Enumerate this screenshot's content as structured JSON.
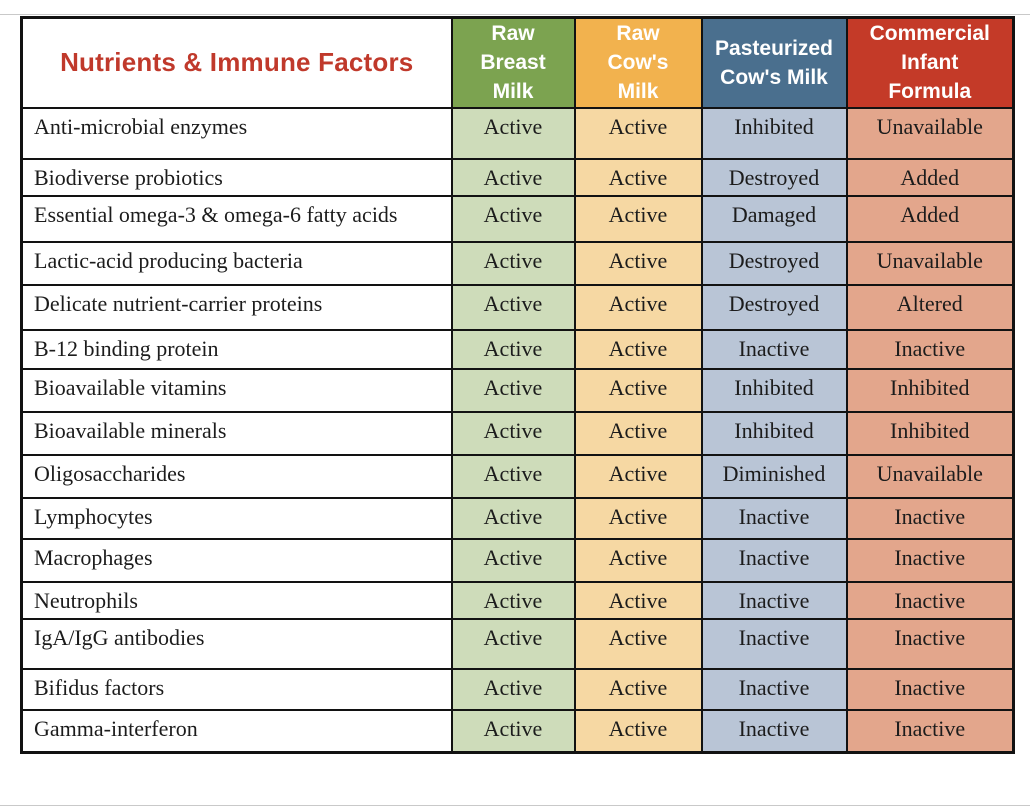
{
  "chart_data": {
    "type": "table",
    "title": "Nutrients & Immune Factors",
    "col_headers": [
      "Raw\nBreast\nMilk",
      "Raw\nCow's\nMilk",
      "Pasteurized\nCow's Milk",
      "Commercial\nInfant\nFormula"
    ],
    "rows": [
      {
        "label": "Anti-microbial enzymes",
        "values": [
          "Active",
          "Active",
          "Inhibited",
          "Unavailable"
        ]
      },
      {
        "label": "Biodiverse probiotics",
        "values": [
          "Active",
          "Active",
          "Destroyed",
          "Added"
        ]
      },
      {
        "label": "Essential omega-3 & omega-6 fatty acids",
        "values": [
          "Active",
          "Active",
          "Damaged",
          "Added"
        ]
      },
      {
        "label": "Lactic-acid producing bacteria",
        "values": [
          "Active",
          "Active",
          "Destroyed",
          "Unavailable"
        ]
      },
      {
        "label": "Delicate nutrient-carrier proteins",
        "values": [
          "Active",
          "Active",
          "Destroyed",
          "Altered"
        ]
      },
      {
        "label": "B-12 binding protein",
        "values": [
          "Active",
          "Active",
          "Inactive",
          "Inactive"
        ]
      },
      {
        "label": "Bioavailable vitamins",
        "values": [
          "Active",
          "Active",
          "Inhibited",
          "Inhibited"
        ]
      },
      {
        "label": "Bioavailable minerals",
        "values": [
          "Active",
          "Active",
          "Inhibited",
          "Inhibited"
        ]
      },
      {
        "label": "Oligosaccharides",
        "values": [
          "Active",
          "Active",
          "Diminished",
          "Unavailable"
        ]
      },
      {
        "label": "Lymphocytes",
        "values": [
          "Active",
          "Active",
          "Inactive",
          "Inactive"
        ]
      },
      {
        "label": "Macrophages",
        "values": [
          "Active",
          "Active",
          "Inactive",
          "Inactive"
        ]
      },
      {
        "label": "Neutrophils",
        "values": [
          "Active",
          "Active",
          "Inactive",
          "Inactive"
        ]
      },
      {
        "label": "IgA/IgG antibodies",
        "values": [
          "Active",
          "Active",
          "Inactive",
          "Inactive"
        ]
      },
      {
        "label": "Bifidus factors",
        "values": [
          "Active",
          "Active",
          "Inactive",
          "Inactive"
        ]
      },
      {
        "label": "Gamma-interferon",
        "values": [
          "Active",
          "Active",
          "Inactive",
          "Inactive"
        ]
      }
    ]
  },
  "colors": {
    "title_text": "#C0392B",
    "header_text": "#FFFFFF",
    "body_text": "#1C1C1C",
    "border": "#121212",
    "header_bgs": [
      "#7CA350",
      "#F2B24E",
      "#4A6F8E",
      "#C43A28"
    ],
    "cell_bgs": [
      "#CEDCBA",
      "#F6D8A3",
      "#B9C5D6",
      "#E3A68C"
    ]
  }
}
